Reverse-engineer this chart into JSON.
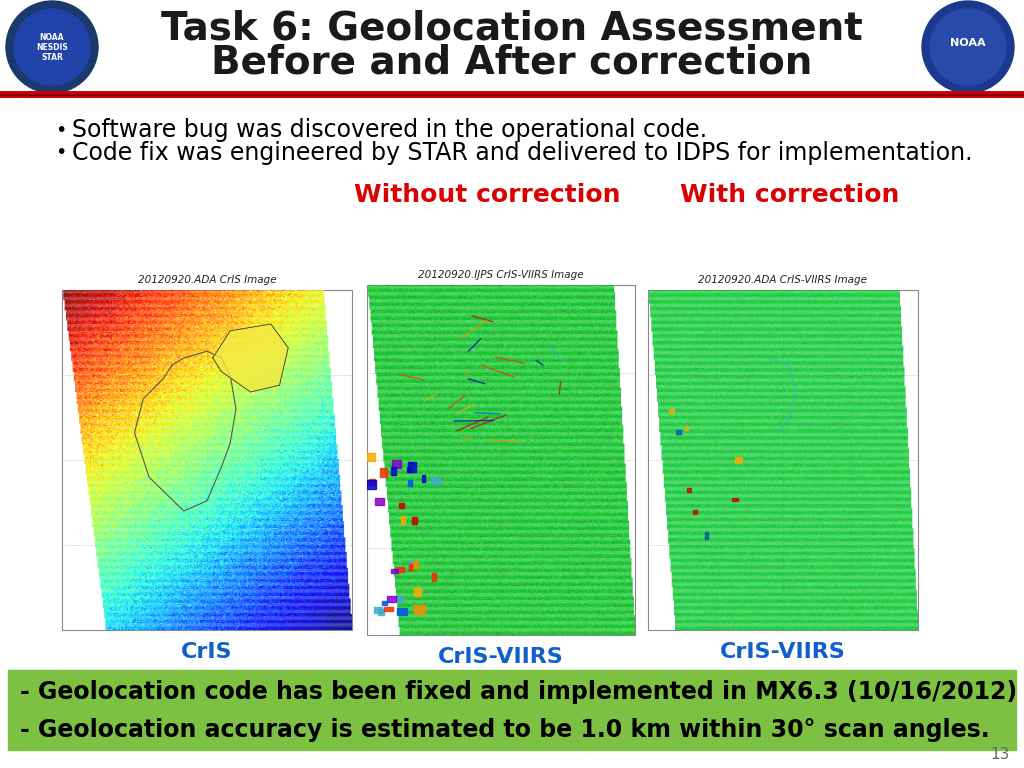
{
  "title_line1": "Task 6: Geolocation Assessment",
  "title_line2": "Before and After correction",
  "title_color": "#1a1a1a",
  "title_fontsize": 28,
  "header_line_color": "#cc0000",
  "bullet1": "Software bug was discovered in the operational code.",
  "bullet2": "Code fix was engineered by STAR and delivered to IDPS for implementation.",
  "bullet_fontsize": 17,
  "label_left": "Without correction",
  "label_right": "With correction",
  "label_color": "#dd0000",
  "label_fontsize": 18,
  "caption1": "CrIS",
  "caption2": "CrIS-VIIRS",
  "caption3": "CrIS-VIIRS",
  "caption_color": "#1060cc",
  "caption_fontsize": 16,
  "img1_title": "20120920.ADA CrIS Image",
  "img2_title": "20120920.IJPS CrIS-VIIRS Image",
  "img3_title": "20120920.ADA CrIS-VIIRS Image",
  "footer_text1": "- Geolocation code has been fixed and implemented in MX6.3 (10/16/2012)",
  "footer_text2": "- Geolocation accuracy is estimated to be 1.0 km within 30° scan angles.",
  "footer_bg_color": "#7dc142",
  "footer_text_color": "#000000",
  "footer_fontsize": 17,
  "page_number": "13",
  "bg_color": "#ffffff"
}
